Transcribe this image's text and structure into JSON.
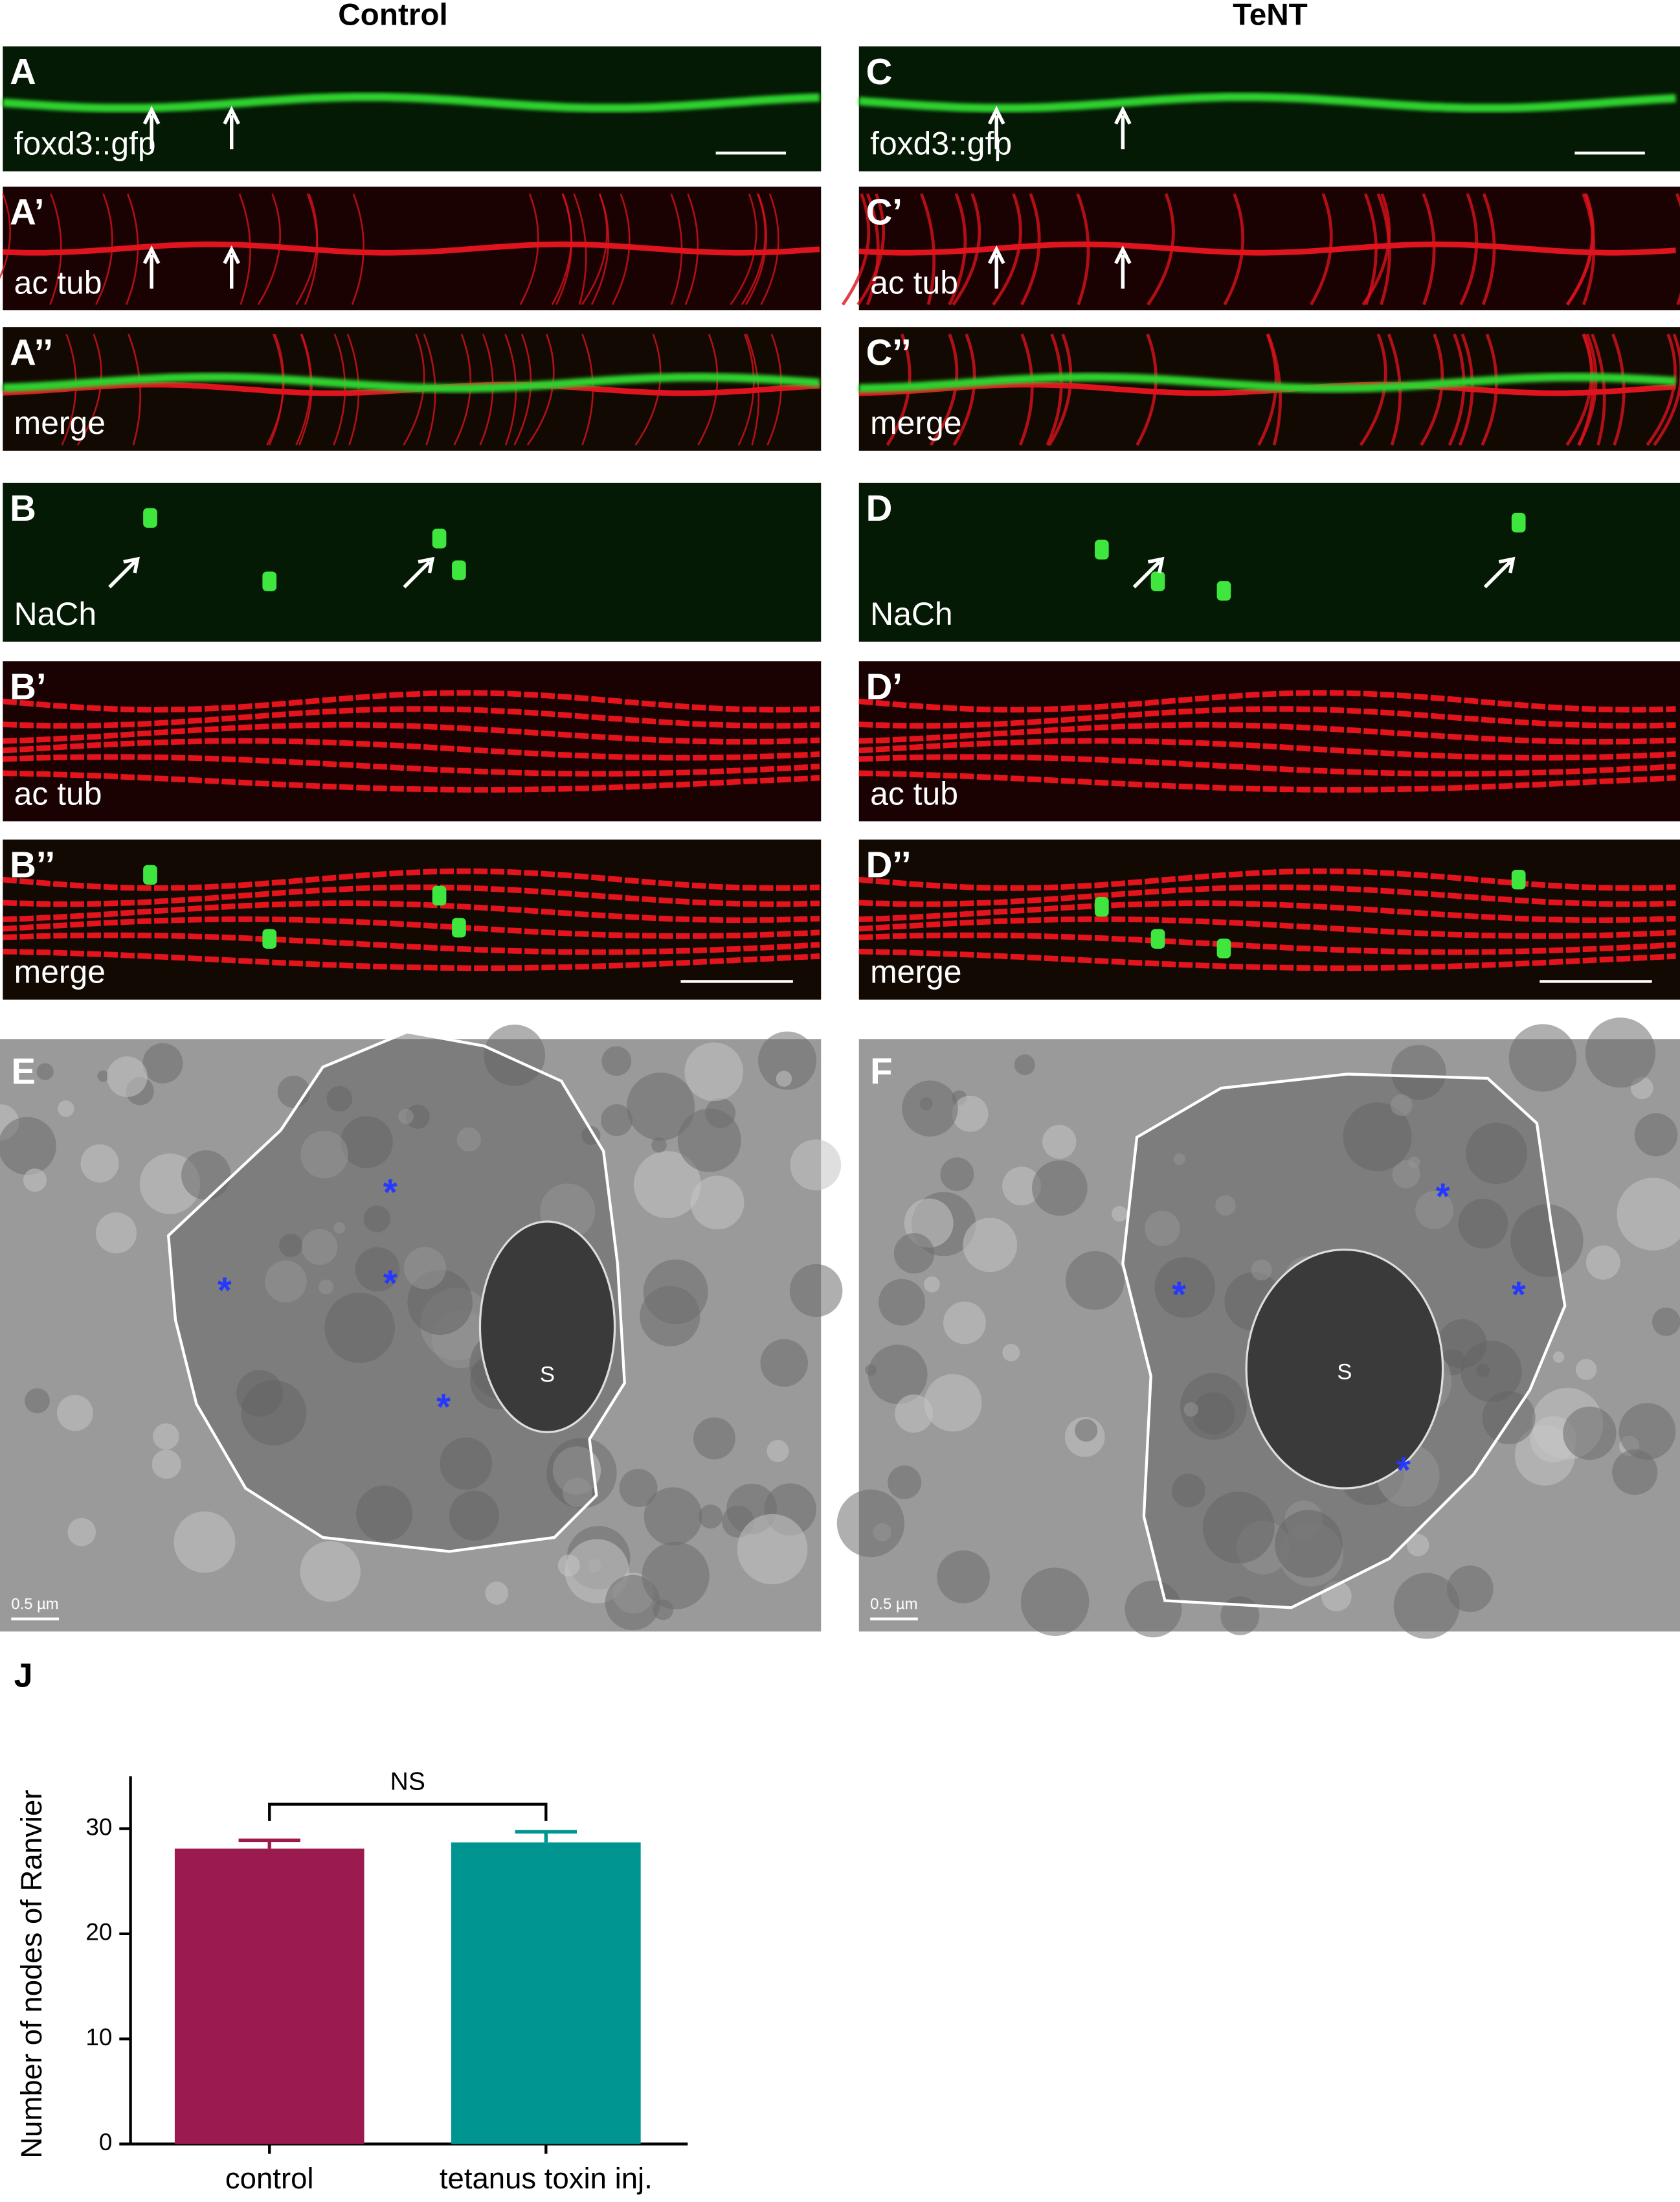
{
  "columns": [
    "Control",
    "TeNT"
  ],
  "panels": [
    {
      "label": "A",
      "stain": "foxd3::gfp"
    },
    {
      "label": "A’",
      "stain": "ac tub"
    },
    {
      "label": "A’’",
      "stain": "merge"
    },
    {
      "label": "B",
      "stain": "NaCh"
    },
    {
      "label": "B’",
      "stain": "ac tub"
    },
    {
      "label": "B’’",
      "stain": "merge"
    },
    {
      "label": "C",
      "stain": "foxd3::gfp"
    },
    {
      "label": "C’",
      "stain": "ac tub"
    },
    {
      "label": "C’’",
      "stain": "merge"
    },
    {
      "label": "D",
      "stain": "NaCh"
    },
    {
      "label": "D’",
      "stain": "ac tub"
    },
    {
      "label": "D’’",
      "stain": "merge"
    }
  ],
  "em_panels": [
    {
      "label": "E",
      "soma": "S",
      "scale_bar": "0.5 µm",
      "marker": "*"
    },
    {
      "label": "F",
      "soma": "S",
      "scale_bar": "0.5 µm",
      "marker": "*"
    }
  ],
  "chart_label": "J",
  "chart_data": {
    "type": "bar",
    "ylabel": "Number of nodes of Ranvier",
    "categories": [
      "control",
      "tetanus toxin inj."
    ],
    "values": [
      28.1,
      28.7
    ],
    "errors": [
      0.8,
      1.0
    ],
    "colors": [
      "#9b1b4f",
      "#009591"
    ],
    "ylim": [
      0,
      35
    ],
    "yticks": [
      0,
      10,
      20,
      30
    ],
    "annotation": "NS"
  }
}
